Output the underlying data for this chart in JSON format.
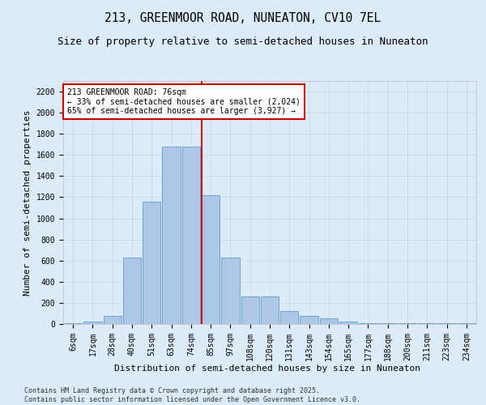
{
  "title_line1": "213, GREENMOOR ROAD, NUNEATON, CV10 7EL",
  "title_line2": "Size of property relative to semi-detached houses in Nuneaton",
  "xlabel": "Distribution of semi-detached houses by size in Nuneaton",
  "ylabel": "Number of semi-detached properties",
  "categories": [
    "6sqm",
    "17sqm",
    "28sqm",
    "40sqm",
    "51sqm",
    "63sqm",
    "74sqm",
    "85sqm",
    "97sqm",
    "108sqm",
    "120sqm",
    "131sqm",
    "143sqm",
    "154sqm",
    "165sqm",
    "177sqm",
    "188sqm",
    "200sqm",
    "211sqm",
    "223sqm",
    "234sqm"
  ],
  "values": [
    10,
    25,
    80,
    630,
    1160,
    1680,
    1680,
    1220,
    630,
    260,
    260,
    120,
    80,
    50,
    25,
    10,
    10,
    10,
    5,
    5,
    10
  ],
  "bar_color": "#aec6e8",
  "bar_edge_color": "#5a9fd4",
  "red_line_bar_index": 7,
  "annotation_text": "213 GREENMOOR ROAD: 76sqm\n← 33% of semi-detached houses are smaller (2,024)\n65% of semi-detached houses are larger (3,927) →",
  "annotation_box_color": "#ffffff",
  "annotation_box_edge_color": "#cc0000",
  "red_line_color": "#cc0000",
  "ylim": [
    0,
    2300
  ],
  "yticks": [
    0,
    200,
    400,
    600,
    800,
    1000,
    1200,
    1400,
    1600,
    1800,
    2000,
    2200
  ],
  "grid_color": "#c8daea",
  "background_color": "#ddeaf7",
  "plot_bg_color": "#ddeaf7",
  "footer_text": "Contains HM Land Registry data © Crown copyright and database right 2025.\nContains public sector information licensed under the Open Government Licence v3.0.",
  "title_fontsize": 10.5,
  "subtitle_fontsize": 9,
  "axis_label_fontsize": 8,
  "tick_fontsize": 7,
  "annotation_fontsize": 7,
  "footer_fontsize": 6
}
